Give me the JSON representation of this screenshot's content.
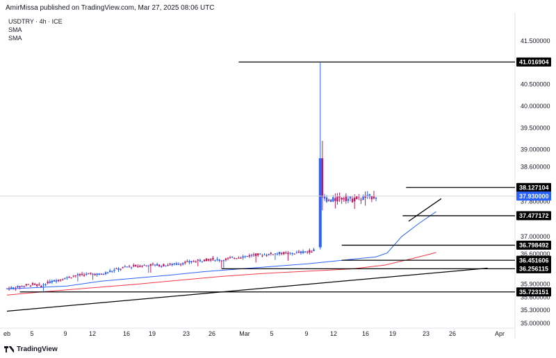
{
  "header": {
    "text": "AmirMissa published on TradingView.com, Mar 27, 2025 08:06 UTC"
  },
  "legend": {
    "symbol": "USDTRY · 4h · ICE",
    "ind1": "SMA",
    "ind2": "SMA"
  },
  "footer": {
    "brand": "TradingView"
  },
  "colors": {
    "up": "#2962ff",
    "down": "#c2185b",
    "sma_fast": "#2962ff",
    "sma_slow": "#f23645",
    "trend": "#000000"
  },
  "chart_data": {
    "type": "candlestick",
    "ylim": [
      35.0,
      41.75
    ],
    "y_ticks": [
      "41.500000",
      "41.016904",
      "40.500000",
      "40.000000",
      "39.500000",
      "39.000000",
      "38.600000",
      "38.127104",
      "37.930000",
      "37.800000",
      "37.477172",
      "37.000000",
      "36.798492",
      "36.600000",
      "36.451606",
      "36.256115",
      "35.900000",
      "35.723151",
      "35.600000",
      "35.300000",
      "35.000000"
    ],
    "x_ticks": [
      "eb",
      "5",
      "9",
      "12",
      "16",
      "19",
      "23",
      "26",
      "Mar",
      "5",
      "9",
      "12",
      "16",
      "19",
      "23",
      "26",
      "Apr"
    ],
    "last_price": "37.930000",
    "price_labels": [
      "41.016904",
      "38.127104",
      "37.930000",
      "37.477172",
      "36.798492",
      "36.451606",
      "36.256115",
      "35.723151"
    ],
    "horizontal_levels": [
      {
        "value": 41.016904,
        "from_day": 27.0
      },
      {
        "value": 38.127104,
        "from_day": 46.5
      },
      {
        "value": 37.477172,
        "from_day": 46.1
      },
      {
        "value": 36.798492,
        "from_day": 39.0
      },
      {
        "value": 36.451606,
        "from_day": 39.0
      },
      {
        "value": 36.256115,
        "from_day": 25.0
      },
      {
        "value": 35.723151,
        "from_day": 1.5
      }
    ],
    "trendlines": [
      {
        "from": [
          0.0,
          35.28
        ],
        "to": [
          56.0,
          36.27
        ]
      },
      {
        "from": [
          46.8,
          37.35
        ],
        "to": [
          50.6,
          37.87
        ]
      }
    ],
    "sma_fast": [
      [
        0,
        35.79
      ],
      [
        3,
        35.82
      ],
      [
        7,
        35.86
      ],
      [
        11,
        35.97
      ],
      [
        15,
        36.04
      ],
      [
        19,
        36.11
      ],
      [
        23,
        36.19
      ],
      [
        27,
        36.25
      ],
      [
        31,
        36.31
      ],
      [
        35,
        36.37
      ],
      [
        39,
        36.45
      ],
      [
        43,
        36.53
      ],
      [
        44.3,
        36.62
      ],
      [
        46,
        37.0
      ],
      [
        48,
        37.3
      ],
      [
        50,
        37.57
      ]
    ],
    "sma_slow": [
      [
        0,
        35.65
      ],
      [
        5,
        35.74
      ],
      [
        10,
        35.82
      ],
      [
        15,
        35.9
      ],
      [
        20,
        35.99
      ],
      [
        25,
        36.08
      ],
      [
        30,
        36.15
      ],
      [
        35,
        36.2
      ],
      [
        40,
        36.25
      ],
      [
        44,
        36.34
      ],
      [
        47,
        36.48
      ],
      [
        50,
        36.63
      ]
    ],
    "ohlc_anchors": [
      [
        0,
        35.8
      ],
      [
        1,
        35.82
      ],
      [
        2,
        35.87
      ],
      [
        3,
        35.9
      ],
      [
        4,
        35.86
      ],
      [
        5,
        35.95
      ],
      [
        6,
        36.0
      ],
      [
        7,
        36.05
      ],
      [
        8,
        36.1
      ],
      [
        9,
        36.12
      ],
      [
        10,
        36.14
      ],
      [
        11,
        36.12
      ],
      [
        12,
        36.2
      ],
      [
        13,
        36.25
      ],
      [
        14,
        36.3
      ],
      [
        15,
        36.32
      ],
      [
        16,
        36.33
      ],
      [
        17,
        36.35
      ],
      [
        18,
        36.33
      ],
      [
        19,
        36.35
      ],
      [
        20,
        36.37
      ],
      [
        21,
        36.4
      ],
      [
        22,
        36.43
      ],
      [
        23,
        36.46
      ],
      [
        24,
        36.48
      ],
      [
        25,
        36.45
      ],
      [
        26,
        36.5
      ],
      [
        27,
        36.52
      ],
      [
        28,
        36.55
      ],
      [
        29,
        36.58
      ],
      [
        30,
        36.58
      ],
      [
        31,
        36.6
      ],
      [
        32,
        36.62
      ],
      [
        33,
        36.6
      ],
      [
        34,
        36.63
      ],
      [
        35,
        36.65
      ],
      [
        35.9,
        36.68
      ],
      [
        36.4,
        38.8
      ],
      [
        36.9,
        37.92
      ],
      [
        37.5,
        37.82
      ],
      [
        38.3,
        37.85
      ],
      [
        39.2,
        37.9
      ],
      [
        40.1,
        37.85
      ],
      [
        41,
        37.88
      ],
      [
        42,
        37.9
      ],
      [
        43,
        37.93
      ]
    ]
  }
}
